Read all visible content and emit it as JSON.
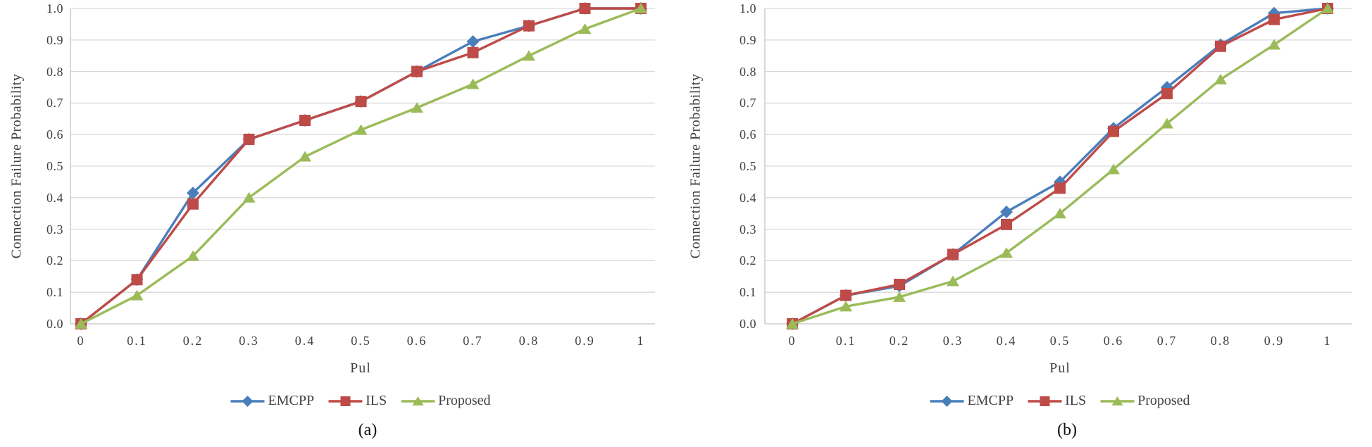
{
  "figure": {
    "background": "#ffffff",
    "grid_color": "#d9d9d9",
    "axis_color": "#c3c3c3",
    "text_color": "#3f3f3f"
  },
  "chart_data": [
    {
      "type": "line",
      "caption": "(a)",
      "xlabel": "Pul",
      "ylabel": "Connection Failure Probability",
      "x": [
        0,
        0.1,
        0.2,
        0.3,
        0.4,
        0.5,
        0.6,
        0.7,
        0.8,
        0.9,
        1
      ],
      "x_tick_labels": [
        "0",
        "0.1",
        "0.2",
        "0.3",
        "0.4",
        "0.5",
        "0.6",
        "0.7",
        "0.8",
        "0.9",
        "1"
      ],
      "y_tick_labels": [
        "0.0",
        "0.1",
        "0.2",
        "0.3",
        "0.4",
        "0.5",
        "0.6",
        "0.7",
        "0.8",
        "0.9",
        "1.0"
      ],
      "ylim": [
        0,
        1
      ],
      "grid": "horizontal",
      "legend_position": "bottom",
      "series": [
        {
          "name": "EMCPP",
          "marker": "diamond",
          "color": "#4a7ebb",
          "values": [
            0,
            0.14,
            0.415,
            0.585,
            0.645,
            0.705,
            0.8,
            0.895,
            0.945,
            1.0,
            1.0
          ]
        },
        {
          "name": "ILS",
          "marker": "square",
          "color": "#be4b48",
          "values": [
            0,
            0.14,
            0.38,
            0.585,
            0.645,
            0.705,
            0.8,
            0.86,
            0.945,
            1.0,
            1.0
          ]
        },
        {
          "name": "Proposed",
          "marker": "triangle",
          "color": "#9bbb59",
          "values": [
            0,
            0.09,
            0.215,
            0.4,
            0.53,
            0.615,
            0.685,
            0.76,
            0.85,
            0.935,
            1.0
          ]
        }
      ]
    },
    {
      "type": "line",
      "caption": "(b)",
      "xlabel": "Pul",
      "ylabel": "Connection Failure Probability",
      "x": [
        0,
        0.1,
        0.2,
        0.3,
        0.4,
        0.5,
        0.6,
        0.7,
        0.8,
        0.9,
        1
      ],
      "x_tick_labels": [
        "0",
        "0.1",
        "0.2",
        "0.3",
        "0.4",
        "0.5",
        "0.6",
        "0.7",
        "0.8",
        "0.9",
        "1"
      ],
      "y_tick_labels": [
        "0.0",
        "0.1",
        "0.2",
        "0.3",
        "0.4",
        "0.5",
        "0.6",
        "0.7",
        "0.8",
        "0.9",
        "1.0"
      ],
      "ylim": [
        0,
        1
      ],
      "grid": "horizontal",
      "legend_position": "bottom",
      "series": [
        {
          "name": "EMCPP",
          "marker": "diamond",
          "color": "#4a7ebb",
          "values": [
            0,
            0.09,
            0.12,
            0.22,
            0.355,
            0.45,
            0.62,
            0.75,
            0.885,
            0.985,
            1.0
          ]
        },
        {
          "name": "ILS",
          "marker": "square",
          "color": "#be4b48",
          "values": [
            0,
            0.09,
            0.125,
            0.22,
            0.315,
            0.43,
            0.61,
            0.73,
            0.88,
            0.965,
            1.0
          ]
        },
        {
          "name": "Proposed",
          "marker": "triangle",
          "color": "#9bbb59",
          "values": [
            0,
            0.055,
            0.085,
            0.135,
            0.225,
            0.35,
            0.49,
            0.635,
            0.775,
            0.885,
            1.0
          ]
        }
      ]
    }
  ]
}
